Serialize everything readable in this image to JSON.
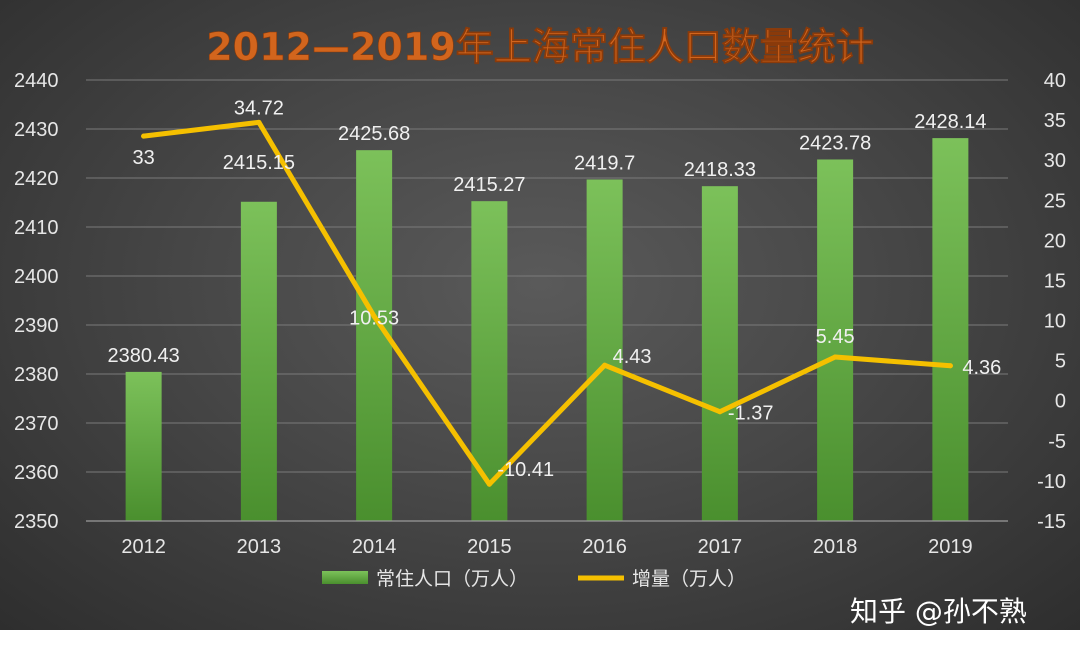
{
  "watermark": "知乎 @孙不熟",
  "colors": {
    "bar_top": "#7cc15a",
    "bar_bottom": "#4a8f2e",
    "line": "#f5c000",
    "title": "#d2651d"
  },
  "chart_data": {
    "type": "bar",
    "title": "2012—2019年上海常住人口数量统计",
    "categories": [
      "2012",
      "2013",
      "2014",
      "2015",
      "2016",
      "2017",
      "2018",
      "2019"
    ],
    "series": [
      {
        "name": "常住人口（万人）",
        "type": "bar",
        "axis": "left",
        "values": [
          2380.43,
          2415.15,
          2425.68,
          2415.27,
          2419.7,
          2418.33,
          2423.78,
          2428.14
        ],
        "labels": [
          "2380.43",
          "2415.15",
          "2425.68",
          "2415.27",
          "2419.7",
          "2418.33",
          "2423.78",
          "2428.14"
        ]
      },
      {
        "name": "增量（万人）",
        "type": "line",
        "axis": "right",
        "values": [
          33,
          34.72,
          10.53,
          -10.41,
          4.43,
          -1.37,
          5.45,
          4.36
        ],
        "labels": [
          "33",
          "34.72",
          "10.53",
          "-10.41",
          "4.43",
          "-1.37",
          "5.45",
          "4.36"
        ]
      }
    ],
    "y_left": {
      "min": 2350,
      "max": 2440,
      "step": 10,
      "ticks": [
        "2350",
        "2360",
        "2370",
        "2380",
        "2390",
        "2400",
        "2410",
        "2420",
        "2430",
        "2440"
      ]
    },
    "y_right": {
      "min": -15,
      "max": 40,
      "step": 5,
      "ticks": [
        "-15",
        "-10",
        "-5",
        "0",
        "5",
        "10",
        "15",
        "20",
        "25",
        "30",
        "35",
        "40"
      ]
    },
    "grid": true,
    "legend": "bottom"
  }
}
